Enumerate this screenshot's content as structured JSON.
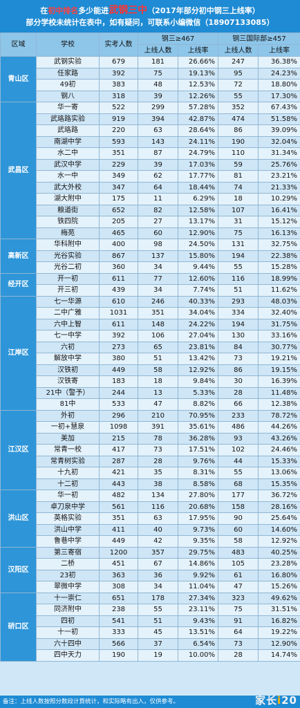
{
  "title": {
    "prefix": "在",
    "hl1": "初中排名",
    "mid": "多少能进",
    "hl2": "武钢三中",
    "suffix": "（2017年部分初中钢三上线率）",
    "line2": "部分学校未统计在表中，如有疑问，可联系小编微信（18907133085）"
  },
  "headers": {
    "district": "区域",
    "school": "学校",
    "examinees": "实考人数",
    "group1": "钢三≥467",
    "group2": "钢三国际部≥457",
    "count": "上线人数",
    "rate": "上线率"
  },
  "districts": [
    {
      "name": "青山区",
      "rows": [
        [
          "武钢实验",
          "679",
          "181",
          "26.66%",
          "247",
          "36.38%"
        ],
        [
          "任家路",
          "392",
          "75",
          "19.13%",
          "95",
          "24.23%"
        ],
        [
          "49初",
          "383",
          "48",
          "12.53%",
          "72",
          "18.80%"
        ],
        [
          "钢八",
          "318",
          "39",
          "12.26%",
          "55",
          "17.30%"
        ]
      ]
    },
    {
      "name": "武昌区",
      "rows": [
        [
          "华一寄",
          "522",
          "299",
          "57.28%",
          "352",
          "67.43%"
        ],
        [
          "武珞路实验",
          "919",
          "394",
          "42.87%",
          "474",
          "51.58%"
        ],
        [
          "武珞路",
          "220",
          "63",
          "28.64%",
          "86",
          "39.09%"
        ],
        [
          "南湖中学",
          "593",
          "143",
          "24.11%",
          "190",
          "32.04%"
        ],
        [
          "水二中",
          "351",
          "87",
          "24.79%",
          "110",
          "31.34%"
        ],
        [
          "武汉中学",
          "229",
          "39",
          "17.03%",
          "59",
          "25.76%"
        ],
        [
          "水一中",
          "349",
          "62",
          "17.77%",
          "81",
          "23.21%"
        ],
        [
          "武大外校",
          "347",
          "64",
          "18.44%",
          "74",
          "21.33%"
        ],
        [
          "湖大附中",
          "175",
          "11",
          "6.29%",
          "18",
          "10.29%"
        ],
        [
          "粮道街",
          "652",
          "82",
          "12.58%",
          "107",
          "16.41%"
        ],
        [
          "铁四院",
          "205",
          "27",
          "13.17%",
          "31",
          "15.12%"
        ],
        [
          "梅苑",
          "465",
          "60",
          "12.90%",
          "75",
          "16.13%"
        ]
      ]
    },
    {
      "name": "高新区",
      "rows": [
        [
          "华科附中",
          "400",
          "98",
          "24.50%",
          "131",
          "32.75%"
        ],
        [
          "光谷实验",
          "867",
          "137",
          "15.80%",
          "194",
          "22.38%"
        ],
        [
          "光谷二初",
          "360",
          "34",
          "9.44%",
          "55",
          "15.28%"
        ]
      ]
    },
    {
      "name": "经开区",
      "rows": [
        [
          "开一初",
          "611",
          "77",
          "12.60%",
          "116",
          "18.99%"
        ],
        [
          "开三初",
          "439",
          "34",
          "7.74%",
          "51",
          "11.62%"
        ]
      ]
    },
    {
      "name": "江岸区",
      "rows": [
        [
          "七一华源",
          "610",
          "246",
          "40.33%",
          "293",
          "48.03%"
        ],
        [
          "二中广雅",
          "1031",
          "351",
          "34.04%",
          "334",
          "32.40%"
        ],
        [
          "六中上智",
          "611",
          "148",
          "24.22%",
          "194",
          "31.75%"
        ],
        [
          "七一中学",
          "392",
          "106",
          "27.04%",
          "130",
          "33.16%"
        ],
        [
          "六初",
          "273",
          "65",
          "23.81%",
          "84",
          "30.77%"
        ],
        [
          "解放中学",
          "380",
          "51",
          "13.42%",
          "73",
          "19.21%"
        ],
        [
          "汉铁初",
          "449",
          "58",
          "12.92%",
          "86",
          "19.15%"
        ],
        [
          "汉铁寄",
          "183",
          "18",
          "9.84%",
          "30",
          "16.39%"
        ],
        [
          "21中（警予）",
          "244",
          "13",
          "5.33%",
          "28",
          "11.48%"
        ],
        [
          "81中",
          "533",
          "47",
          "8.82%",
          "66",
          "12.38%"
        ]
      ]
    },
    {
      "name": "江汉区",
      "rows": [
        [
          "外初",
          "296",
          "210",
          "70.95%",
          "233",
          "78.72%"
        ],
        [
          "一初+慧泉",
          "1098",
          "391",
          "35.61%",
          "486",
          "44.26%"
        ],
        [
          "美加",
          "215",
          "78",
          "36.28%",
          "93",
          "43.26%"
        ],
        [
          "常青一校",
          "417",
          "73",
          "17.51%",
          "102",
          "24.46%"
        ],
        [
          "常青树实验",
          "287",
          "28",
          "9.76%",
          "44",
          "15.33%"
        ],
        [
          "十九初",
          "421",
          "35",
          "8.31%",
          "55",
          "13.06%"
        ],
        [
          "十二初",
          "443",
          "38",
          "8.58%",
          "68",
          "15.35%"
        ]
      ]
    },
    {
      "name": "洪山区",
      "rows": [
        [
          "华一初",
          "482",
          "134",
          "27.80%",
          "177",
          "36.72%"
        ],
        [
          "卓刀泉中学",
          "561",
          "116",
          "20.68%",
          "158",
          "28.16%"
        ],
        [
          "英格实验",
          "351",
          "63",
          "17.95%",
          "90",
          "25.64%"
        ],
        [
          "洪山中学",
          "411",
          "40",
          "9.73%",
          "60",
          "14.60%"
        ],
        [
          "鲁巷中学",
          "449",
          "42",
          "9.35%",
          "58",
          "12.92%"
        ]
      ]
    },
    {
      "name": "汉阳区",
      "rows": [
        [
          "第三寄宿",
          "1200",
          "357",
          "29.75%",
          "483",
          "40.25%"
        ],
        [
          "二桥",
          "451",
          "67",
          "14.86%",
          "105",
          "23.28%"
        ],
        [
          "23初",
          "363",
          "36",
          "9.92%",
          "61",
          "16.80%"
        ],
        [
          "翠微中学",
          "308",
          "34",
          "11.04%",
          "47",
          "15.26%"
        ]
      ]
    },
    {
      "name": "硚口区",
      "rows": [
        [
          "十一崇仁",
          "651",
          "178",
          "27.34%",
          "323",
          "49.62%"
        ],
        [
          "同济附中",
          "238",
          "55",
          "23.11%",
          "75",
          "31.51%"
        ],
        [
          "四初",
          "541",
          "51",
          "9.43%",
          "91",
          "16.82%"
        ],
        [
          "十一初",
          "333",
          "45",
          "13.51%",
          "64",
          "19.22%"
        ],
        [
          "六十四中",
          "566",
          "37",
          "6.54%",
          "73",
          "12.90%"
        ],
        [
          "四中天力",
          "190",
          "19",
          "10.00%",
          "28",
          "14.74%"
        ]
      ]
    }
  ],
  "footer": "备注：上线人数按照分数段计算统计，和实际略有出入，仅供参考。",
  "watermark": {
    "text1": "家长",
    "text2": "i",
    "text3": "20"
  },
  "colors": {
    "header": "#1e8bd4",
    "highlight": "#ff3333",
    "district": "#2e95d8"
  }
}
